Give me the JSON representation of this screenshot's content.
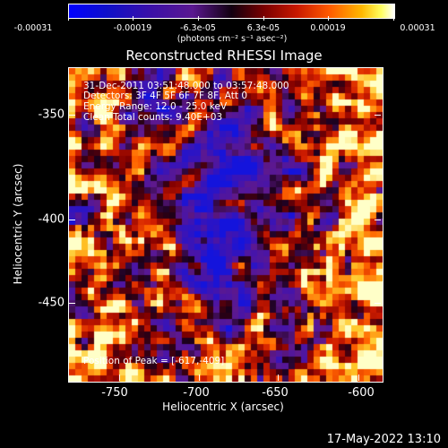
{
  "colorbar": {
    "tick_labels": [
      "-0.00031",
      "-0.00019",
      "-6.3e-05",
      "6.3e-05",
      "0.00019",
      "0.00031"
    ],
    "units": "(photons cm⁻² s⁻¹ asec⁻²)"
  },
  "title": "Reconstructed RHESSI Image",
  "info": {
    "time_range": "31-Dec-2011 03:51:48.000 to 03:57:48.000",
    "detectors": "Detectors: 3F 4F 5F 6F 7F 8F, Att 0",
    "energy_range": "Energy Range: 12.0 - 25.0 keV",
    "clean_counts": "Clean    Total counts: 9.40E+03",
    "peak_position": "Position of Peak = [-617,-409]"
  },
  "axes": {
    "xlabel": "Heliocentric X (arcsec)",
    "ylabel": "Heliocentric Y (arcsec)",
    "x_tick_labels": [
      "-750",
      "-700",
      "-650",
      "-600"
    ],
    "y_tick_labels": [
      "-350",
      "-400",
      "-450"
    ]
  },
  "footer": {
    "date": "17-May-2022 13:10"
  }
}
